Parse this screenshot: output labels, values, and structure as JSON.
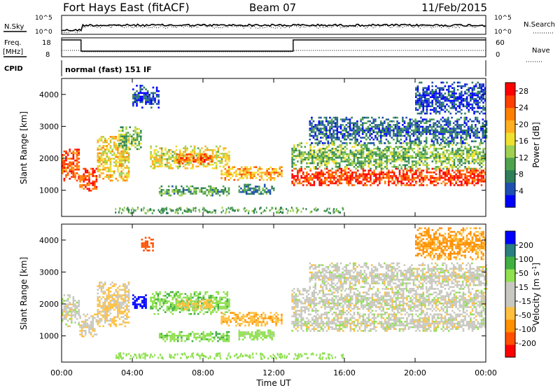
{
  "header": {
    "station": "Fort Hays East (fitACF)",
    "beam": "Beam 07",
    "date": "11/Feb/2015"
  },
  "top_panels": {
    "nsky_label": "N.Sky",
    "nsearch_label": "N.Search",
    "noise_ticks": [
      "10^5",
      "10^0"
    ],
    "freq_label": "Freq.",
    "freq_unit": "[MHz]",
    "freq_ticks": [
      "18",
      "8"
    ],
    "nave_label": "Nave",
    "nave_ticks": [
      "60",
      "0"
    ],
    "cpid_label": "CPID",
    "cpid_value": "normal (fast) 151 IF"
  },
  "colors": {
    "power_scale": [
      "#0000ff",
      "#1f4fb0",
      "#2f7f5a",
      "#4fa34f",
      "#9fd04f",
      "#f0e030",
      "#ffb020",
      "#ff8000",
      "#ff4000",
      "#ff0000"
    ],
    "velocity_scale": [
      "#ff0000",
      "#ff5000",
      "#ff9000",
      "#ffc040",
      "#c8c8c0",
      "#c8c8c0",
      "#90e050",
      "#40b040",
      "#2a7f7f",
      "#0000ff"
    ]
  },
  "chart_data": [
    {
      "type": "heatmap",
      "quantity": "Power",
      "ylabel": "Slant Range [km]",
      "colorbar_label": "Power [dB]",
      "colorbar_ticks": [
        4,
        8,
        12,
        16,
        20,
        24,
        28
      ],
      "colorbar_range": [
        0,
        30
      ],
      "ylim": [
        180,
        4500
      ],
      "yticks": [
        1000,
        2000,
        3000,
        4000
      ],
      "xlim": [
        0,
        24
      ],
      "xticks": [
        "00:00",
        "04:00",
        "08:00",
        "12:00",
        "16:00",
        "20:00",
        "00:00"
      ],
      "echo_bands": [
        {
          "t": [
            0.0,
            1.0
          ],
          "r": [
            1300,
            2300
          ],
          "level": 24
        },
        {
          "t": [
            1.0,
            2.0
          ],
          "r": [
            1000,
            1700
          ],
          "level": 26
        },
        {
          "t": [
            2.0,
            3.8
          ],
          "r": [
            1300,
            2700
          ],
          "level": 18
        },
        {
          "t": [
            3.2,
            4.5
          ],
          "r": [
            2300,
            3000
          ],
          "level": 12
        },
        {
          "t": [
            5.0,
            9.5
          ],
          "r": [
            1700,
            2400
          ],
          "level": 16
        },
        {
          "t": [
            6.5,
            8.5
          ],
          "r": [
            1850,
            2150
          ],
          "level": 24
        },
        {
          "t": [
            9.0,
            12.5
          ],
          "r": [
            1350,
            1750
          ],
          "level": 20
        },
        {
          "t": [
            5.5,
            9.5
          ],
          "r": [
            850,
            1150
          ],
          "level": 10
        },
        {
          "t": [
            10.0,
            12.0
          ],
          "r": [
            900,
            1200
          ],
          "level": 8
        },
        {
          "t": [
            13.0,
            24.0
          ],
          "r": [
            1150,
            1700
          ],
          "level": 26
        },
        {
          "t": [
            13.0,
            24.0
          ],
          "r": [
            1700,
            2500
          ],
          "level": 12
        },
        {
          "t": [
            14.0,
            24.0
          ],
          "r": [
            2500,
            3300
          ],
          "level": 6
        },
        {
          "t": [
            20.0,
            24.0
          ],
          "r": [
            3400,
            4400
          ],
          "level": 4
        },
        {
          "t": [
            4.0,
            5.5
          ],
          "r": [
            3600,
            4300
          ],
          "level": 4
        }
      ]
    },
    {
      "type": "heatmap",
      "quantity": "Velocity",
      "ylabel": "Slant Range [km]",
      "xlabel": "Time UT",
      "colorbar_label": "Velocity [m s^-1]",
      "colorbar_ticks": [
        -200,
        -100,
        -50,
        -15,
        15,
        50,
        100,
        200
      ],
      "colorbar_range": [
        -250,
        250
      ],
      "ylim": [
        180,
        4500
      ],
      "yticks": [
        1000,
        2000,
        3000,
        4000
      ],
      "xlim": [
        0,
        24
      ],
      "xticks": [
        "00:00",
        "04:00",
        "08:00",
        "12:00",
        "16:00",
        "20:00",
        "00:00"
      ],
      "echo_bands": [
        {
          "t": [
            0.0,
            1.0
          ],
          "r": [
            1300,
            2300
          ],
          "level": 0
        },
        {
          "t": [
            1.0,
            2.0
          ],
          "r": [
            1000,
            1700
          ],
          "level": -5
        },
        {
          "t": [
            2.0,
            3.8
          ],
          "r": [
            1300,
            2700
          ],
          "level": -20
        },
        {
          "t": [
            4.0,
            4.8
          ],
          "r": [
            1900,
            2300
          ],
          "level": 220
        },
        {
          "t": [
            5.0,
            9.5
          ],
          "r": [
            1700,
            2400
          ],
          "level": 40
        },
        {
          "t": [
            6.5,
            8.5
          ],
          "r": [
            1850,
            2150
          ],
          "level": -30
        },
        {
          "t": [
            9.0,
            12.5
          ],
          "r": [
            1350,
            1750
          ],
          "level": -40
        },
        {
          "t": [
            5.5,
            9.5
          ],
          "r": [
            850,
            1150
          ],
          "level": 40
        },
        {
          "t": [
            10.0,
            12.0
          ],
          "r": [
            900,
            1200
          ],
          "level": 30
        },
        {
          "t": [
            13.0,
            24.0
          ],
          "r": [
            1150,
            1700
          ],
          "level": 0
        },
        {
          "t": [
            13.0,
            24.0
          ],
          "r": [
            1700,
            2500
          ],
          "level": 0
        },
        {
          "t": [
            14.0,
            24.0
          ],
          "r": [
            2500,
            3300
          ],
          "level": 0
        },
        {
          "t": [
            20.0,
            24.0
          ],
          "r": [
            3400,
            4400
          ],
          "level": -60
        },
        {
          "t": [
            4.5,
            5.2
          ],
          "r": [
            3700,
            4100
          ],
          "level": -120
        }
      ]
    }
  ]
}
